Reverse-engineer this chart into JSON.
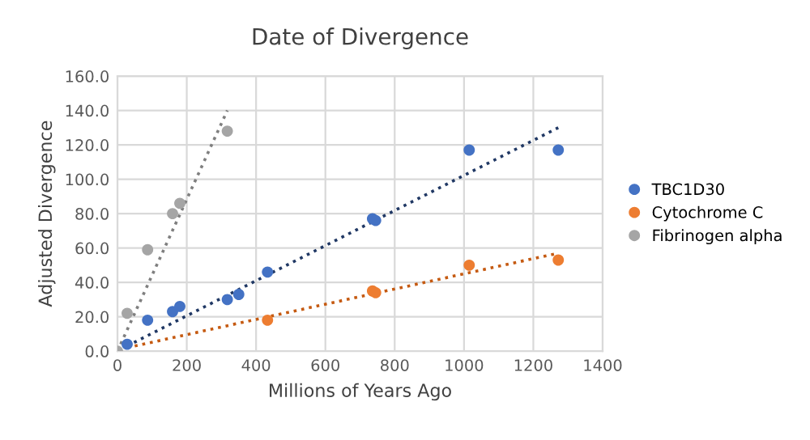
{
  "chart_data": {
    "type": "scatter",
    "title": "Date of Divergence",
    "xlabel": "Millions of Years Ago",
    "ylabel": "Adjusted Divergence",
    "series": [
      {
        "name": "TBC1D30",
        "color": "#4472c4",
        "x": [
          28,
          87,
          159,
          180,
          317,
          350,
          433,
          736,
          745,
          1015,
          1272
        ],
        "values": [
          4,
          18,
          23,
          26,
          30,
          33,
          46,
          77,
          76,
          117,
          117
        ]
      },
      {
        "name": "Cytochrome C",
        "color": "#ed7d31",
        "x": [
          433,
          736,
          745,
          1015,
          1272
        ],
        "values": [
          18,
          35,
          34,
          50,
          53
        ]
      },
      {
        "name": "Fibrinogen alpha",
        "color": "#a5a5a5",
        "x": [
          0,
          28,
          87,
          159,
          180,
          317
        ],
        "values": [
          0,
          22,
          59,
          80,
          86,
          128
        ]
      },
      {
        "type": "line",
        "color": "#203864",
        "line_style": "dotted",
        "marker": "none",
        "x": [
          28,
          1272
        ],
        "values": [
          3,
          130
        ]
      },
      {
        "type": "line",
        "color": "#c55a11",
        "line_style": "dotted",
        "marker": "none",
        "x": [
          28,
          1272
        ],
        "values": [
          2,
          57
        ]
      },
      {
        "type": "line",
        "color": "#7f7f7f",
        "line_style": "dotted",
        "marker": "none",
        "x": [
          0,
          317
        ],
        "values": [
          0,
          140
        ]
      }
    ],
    "marker": "circle",
    "xlim": [
      0,
      1400
    ],
    "xticks": [
      0,
      200,
      400,
      600,
      800,
      1000,
      1200,
      1400
    ],
    "ylim": [
      0,
      160
    ],
    "yticks": [
      {
        "value": 0,
        "label": "0.0"
      },
      {
        "value": 20,
        "label": "20.0"
      },
      {
        "value": 40,
        "label": "40.0"
      },
      {
        "value": 60,
        "label": "60.0"
      },
      {
        "value": 80,
        "label": "80.0"
      },
      {
        "value": 100,
        "label": "100.0"
      },
      {
        "value": 120,
        "label": "120.0"
      },
      {
        "value": 140,
        "label": "140.0"
      },
      {
        "value": 160,
        "label": "160.0"
      }
    ],
    "grid": true,
    "legend": "right"
  }
}
